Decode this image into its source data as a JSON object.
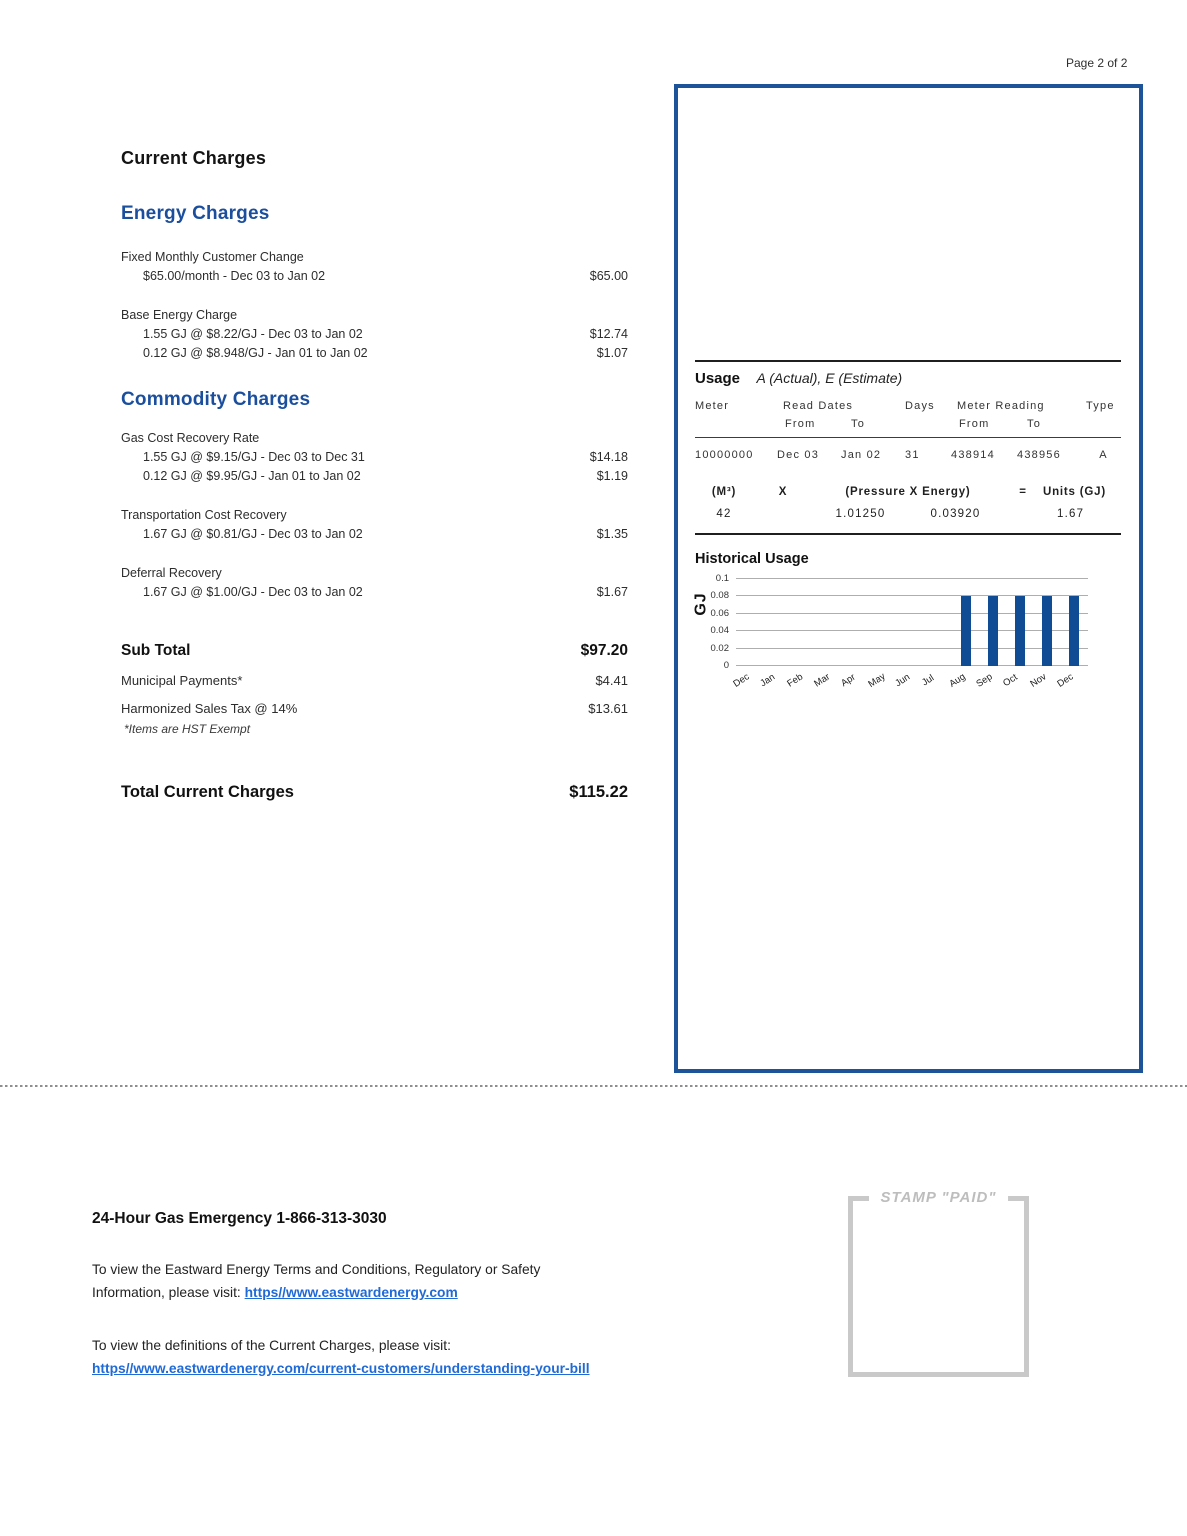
{
  "page": {
    "number": "Page 2 of 2"
  },
  "colors": {
    "accent_blue": "#1b4f9e",
    "box_border_blue": "#1d5499",
    "bar_blue": "#0f4c94",
    "link_blue": "#1f6ad6",
    "stamp_gray": "#c9c9c9"
  },
  "charges": {
    "title": "Current Charges",
    "energy": {
      "heading": "Energy Charges",
      "groups": [
        {
          "label": "Fixed Monthly Customer Change",
          "lines": [
            {
              "desc": "$65.00/month - Dec 03 to Jan 02",
              "amount": "$65.00"
            }
          ]
        },
        {
          "label": "Base Energy Charge",
          "lines": [
            {
              "desc": "1.55 GJ @ $8.22/GJ - Dec 03 to Jan 02",
              "amount": "$12.74"
            },
            {
              "desc": "0.12 GJ @ $8.948/GJ - Jan 01 to Jan 02",
              "amount": "$1.07"
            }
          ]
        }
      ]
    },
    "commodity": {
      "heading": "Commodity Charges",
      "groups": [
        {
          "label": "Gas Cost Recovery Rate",
          "lines": [
            {
              "desc": "1.55 GJ @ $9.15/GJ - Dec 03 to Dec 31",
              "amount": "$14.18"
            },
            {
              "desc": "0.12 GJ @ $9.95/GJ - Jan 01 to Jan 02",
              "amount": "$1.19"
            }
          ]
        },
        {
          "label": "Transportation Cost Recovery",
          "lines": [
            {
              "desc": "1.67 GJ @ $0.81/GJ - Dec 03 to Jan 02",
              "amount": "$1.35"
            }
          ]
        },
        {
          "label": "Deferral Recovery",
          "lines": [
            {
              "desc": "1.67 GJ @ $1.00/GJ - Dec 03 to Jan 02",
              "amount": "$1.67"
            }
          ]
        }
      ]
    },
    "subtotal": {
      "label": "Sub Total",
      "amount": "$97.20"
    },
    "municipal": {
      "label": "Municipal Payments*",
      "amount": "$4.41"
    },
    "hst": {
      "label": "Harmonized Sales Tax  @ 14%",
      "amount": "$13.61"
    },
    "hst_note": "*Items are HST Exempt",
    "total": {
      "label": "Total Current Charges",
      "amount": "$115.22"
    }
  },
  "usage": {
    "title": "Usage",
    "subtitle": "A (Actual), E (Estimate)",
    "table": {
      "headers": {
        "meter": "Meter",
        "read_dates": "Read Dates",
        "days": "Days",
        "meter_reading": "Meter Reading",
        "type": "Type",
        "from": "From",
        "to": "To"
      },
      "row": {
        "meter": "10000000",
        "read_from": "Dec 03",
        "read_to": "Jan 02",
        "days": "31",
        "reading_from": "438914",
        "reading_to": "438956",
        "type": "A"
      }
    },
    "calc": {
      "headers": {
        "m3": "(M³)",
        "x": "X",
        "pressure_energy": "(Pressure X Energy)",
        "equals": "=",
        "units": "Units (GJ)"
      },
      "row": {
        "m3": "42",
        "pressure": "1.01250",
        "energy": "0.03920",
        "units": "1.67"
      }
    }
  },
  "chart_data": {
    "type": "bar",
    "title": "Historical Usage",
    "xlabel": "",
    "ylabel": "GJ",
    "categories": [
      "Dec",
      "Jan",
      "Feb",
      "Mar",
      "Apr",
      "May",
      "Jun",
      "Jul",
      "Aug",
      "Sep",
      "Oct",
      "Nov",
      "Dec"
    ],
    "values": [
      0,
      0,
      0,
      0,
      0,
      0,
      0,
      0,
      0.08,
      0.08,
      0.08,
      0.08,
      0.08
    ],
    "ylim": [
      0,
      0.1
    ],
    "yticks": [
      0,
      0.02,
      0.04,
      0.06,
      0.08,
      0.1
    ],
    "grid": true,
    "legend": false,
    "bar_color": "#0f4c94"
  },
  "footer": {
    "emergency": "24-Hour Gas Emergency 1-866-313-3030",
    "terms_line1": "To view the Eastward Energy Terms and Conditions, Regulatory or Safety",
    "terms_line2_prefix": "Information, please visit: ",
    "terms_link": "https//www.eastwardenergy.com",
    "defs_line1": "To view the definitions of the Current Charges, please visit:",
    "defs_link": "https//www.eastwardenergy.com/current-customers/understanding-your-bill",
    "stamp_label": "STAMP \"PAID\""
  }
}
